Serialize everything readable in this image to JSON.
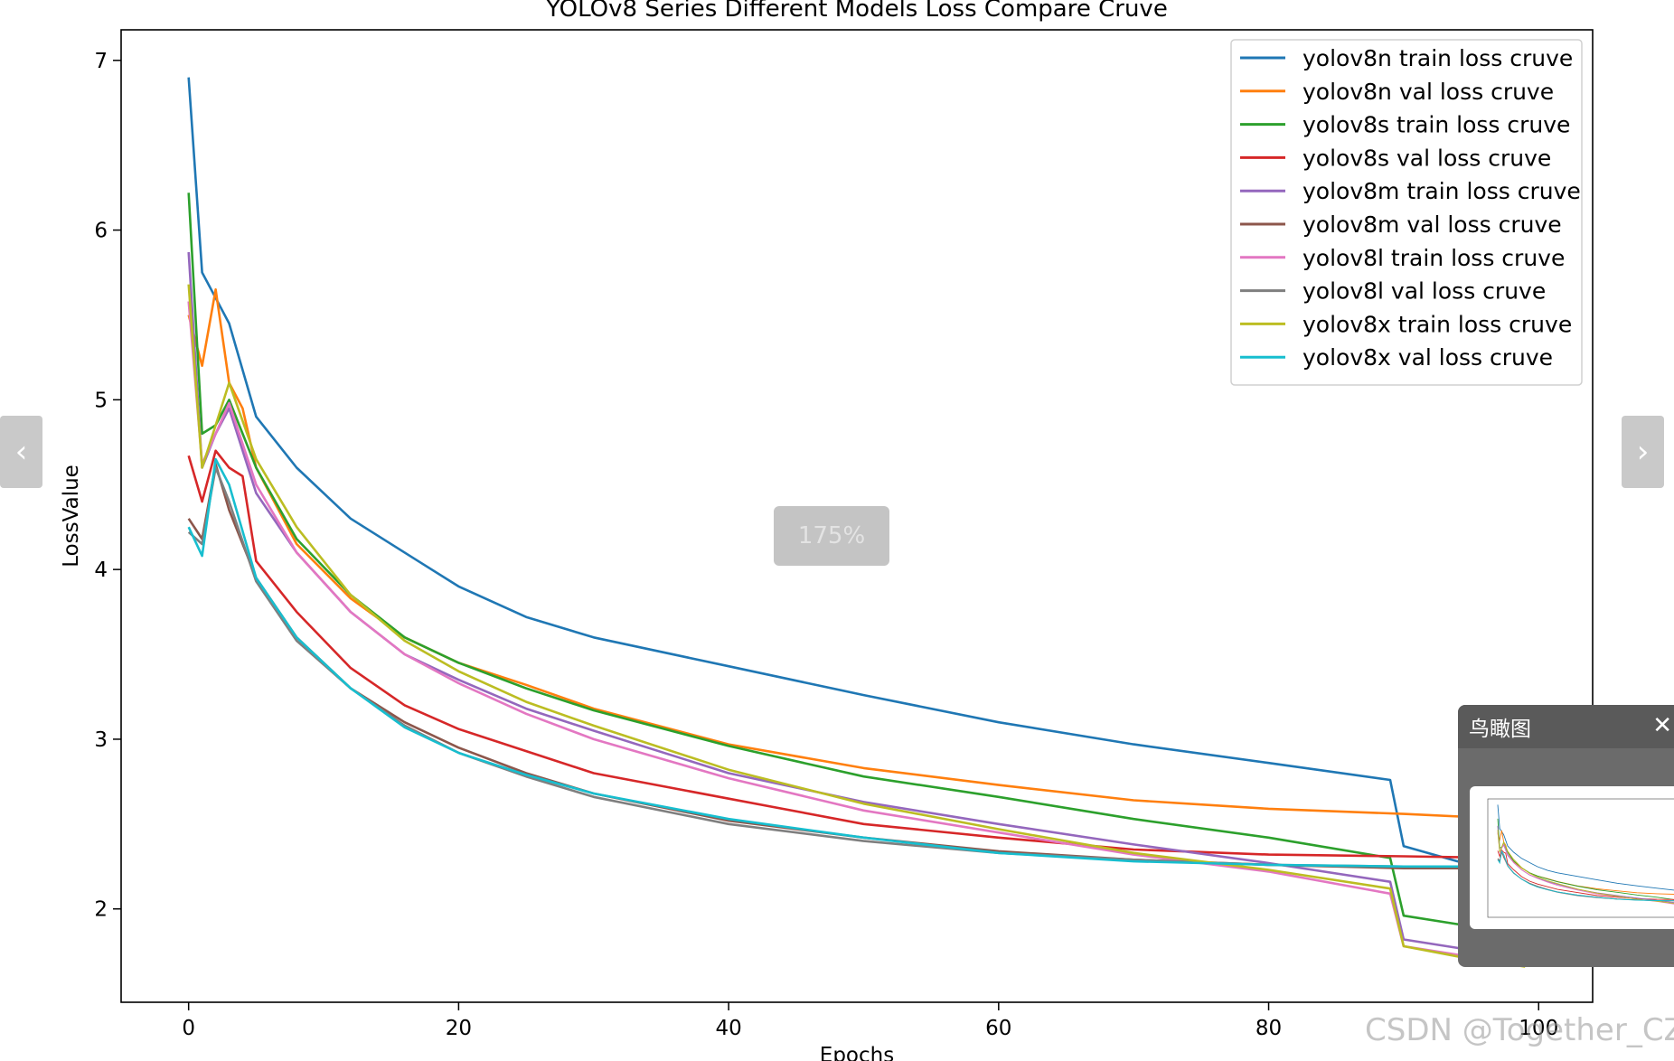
{
  "chart_data": {
    "type": "line",
    "title": "YOLOv8 Series Different Models Loss Compare Cruve",
    "xlabel": "Epochs",
    "ylabel": "LossValue",
    "xlim": [
      -5,
      104
    ],
    "ylim": [
      1.45,
      7.18
    ],
    "xticks": [
      0,
      20,
      40,
      60,
      80,
      100
    ],
    "yticks": [
      2,
      3,
      4,
      5,
      6,
      7
    ],
    "grid": false,
    "legend_position": "upper-right",
    "series": [
      {
        "name": "yolov8n train loss cruve",
        "color": "#1f77b4",
        "points": [
          [
            0,
            6.9
          ],
          [
            1,
            5.75
          ],
          [
            2,
            5.6
          ],
          [
            3,
            5.45
          ],
          [
            5,
            4.9
          ],
          [
            8,
            4.6
          ],
          [
            12,
            4.3
          ],
          [
            17,
            4.05
          ],
          [
            20,
            3.9
          ],
          [
            25,
            3.72
          ],
          [
            30,
            3.6
          ],
          [
            40,
            3.43
          ],
          [
            50,
            3.26
          ],
          [
            60,
            3.1
          ],
          [
            70,
            2.97
          ],
          [
            80,
            2.86
          ],
          [
            89,
            2.76
          ],
          [
            90,
            2.37
          ],
          [
            94,
            2.28
          ],
          [
            98,
            2.26
          ]
        ]
      },
      {
        "name": "yolov8n val loss cruve",
        "color": "#ff7f0e",
        "points": [
          [
            0,
            5.5
          ],
          [
            1,
            5.2
          ],
          [
            2,
            5.65
          ],
          [
            3,
            5.1
          ],
          [
            4,
            4.95
          ],
          [
            5,
            4.6
          ],
          [
            8,
            4.15
          ],
          [
            12,
            3.83
          ],
          [
            16,
            3.6
          ],
          [
            20,
            3.45
          ],
          [
            25,
            3.32
          ],
          [
            30,
            3.18
          ],
          [
            40,
            2.97
          ],
          [
            50,
            2.83
          ],
          [
            60,
            2.73
          ],
          [
            70,
            2.64
          ],
          [
            80,
            2.59
          ],
          [
            90,
            2.56
          ],
          [
            98,
            2.53
          ]
        ]
      },
      {
        "name": "yolov8s train loss cruve",
        "color": "#2ca02c",
        "points": [
          [
            0,
            6.22
          ],
          [
            1,
            4.8
          ],
          [
            2,
            4.85
          ],
          [
            3,
            5.0
          ],
          [
            5,
            4.6
          ],
          [
            8,
            4.18
          ],
          [
            12,
            3.85
          ],
          [
            16,
            3.6
          ],
          [
            20,
            3.45
          ],
          [
            25,
            3.3
          ],
          [
            30,
            3.17
          ],
          [
            40,
            2.96
          ],
          [
            50,
            2.78
          ],
          [
            60,
            2.66
          ],
          [
            70,
            2.53
          ],
          [
            80,
            2.42
          ],
          [
            89,
            2.3
          ],
          [
            90,
            1.96
          ],
          [
            94,
            1.91
          ],
          [
            98,
            1.88
          ]
        ]
      },
      {
        "name": "yolov8s val loss cruve",
        "color": "#d62728",
        "points": [
          [
            0,
            4.67
          ],
          [
            1,
            4.4
          ],
          [
            2,
            4.7
          ],
          [
            3,
            4.6
          ],
          [
            4,
            4.55
          ],
          [
            5,
            4.05
          ],
          [
            8,
            3.75
          ],
          [
            12,
            3.42
          ],
          [
            16,
            3.2
          ],
          [
            20,
            3.06
          ],
          [
            25,
            2.93
          ],
          [
            30,
            2.8
          ],
          [
            40,
            2.65
          ],
          [
            50,
            2.5
          ],
          [
            60,
            2.42
          ],
          [
            70,
            2.35
          ],
          [
            80,
            2.32
          ],
          [
            90,
            2.31
          ],
          [
            98,
            2.3
          ]
        ]
      },
      {
        "name": "yolov8m train loss cruve",
        "color": "#9467bd",
        "points": [
          [
            0,
            5.87
          ],
          [
            1,
            4.6
          ],
          [
            2,
            4.8
          ],
          [
            3,
            4.95
          ],
          [
            5,
            4.45
          ],
          [
            8,
            4.1
          ],
          [
            12,
            3.75
          ],
          [
            16,
            3.5
          ],
          [
            20,
            3.35
          ],
          [
            25,
            3.18
          ],
          [
            30,
            3.05
          ],
          [
            40,
            2.8
          ],
          [
            50,
            2.63
          ],
          [
            60,
            2.5
          ],
          [
            70,
            2.38
          ],
          [
            80,
            2.27
          ],
          [
            89,
            2.16
          ],
          [
            90,
            1.82
          ],
          [
            94,
            1.77
          ],
          [
            99,
            1.72
          ]
        ]
      },
      {
        "name": "yolov8m val loss cruve",
        "color": "#8c564b",
        "points": [
          [
            0,
            4.3
          ],
          [
            1,
            4.18
          ],
          [
            2,
            4.62
          ],
          [
            3,
            4.35
          ],
          [
            5,
            3.95
          ],
          [
            8,
            3.6
          ],
          [
            12,
            3.3
          ],
          [
            16,
            3.1
          ],
          [
            20,
            2.95
          ],
          [
            25,
            2.8
          ],
          [
            30,
            2.68
          ],
          [
            40,
            2.52
          ],
          [
            50,
            2.42
          ],
          [
            60,
            2.34
          ],
          [
            70,
            2.29
          ],
          [
            80,
            2.26
          ],
          [
            90,
            2.24
          ],
          [
            98,
            2.24
          ]
        ]
      },
      {
        "name": "yolov8l train loss cruve",
        "color": "#e377c2",
        "points": [
          [
            0,
            5.58
          ],
          [
            1,
            4.62
          ],
          [
            2,
            4.8
          ],
          [
            3,
            4.98
          ],
          [
            5,
            4.5
          ],
          [
            8,
            4.1
          ],
          [
            12,
            3.75
          ],
          [
            16,
            3.5
          ],
          [
            20,
            3.33
          ],
          [
            25,
            3.15
          ],
          [
            30,
            3.0
          ],
          [
            40,
            2.77
          ],
          [
            50,
            2.58
          ],
          [
            60,
            2.45
          ],
          [
            70,
            2.32
          ],
          [
            80,
            2.22
          ],
          [
            89,
            2.09
          ],
          [
            90,
            1.78
          ],
          [
            94,
            1.73
          ],
          [
            99,
            1.67
          ]
        ]
      },
      {
        "name": "yolov8l val loss cruve",
        "color": "#7f7f7f",
        "points": [
          [
            0,
            4.22
          ],
          [
            1,
            4.15
          ],
          [
            2,
            4.6
          ],
          [
            3,
            4.4
          ],
          [
            5,
            3.93
          ],
          [
            8,
            3.58
          ],
          [
            12,
            3.3
          ],
          [
            16,
            3.08
          ],
          [
            20,
            2.92
          ],
          [
            25,
            2.78
          ],
          [
            30,
            2.66
          ],
          [
            40,
            2.5
          ],
          [
            50,
            2.4
          ],
          [
            60,
            2.33
          ],
          [
            70,
            2.29
          ],
          [
            80,
            2.26
          ],
          [
            90,
            2.25
          ],
          [
            98,
            2.25
          ]
        ]
      },
      {
        "name": "yolov8x train loss cruve",
        "color": "#bcbd22",
        "points": [
          [
            0,
            5.68
          ],
          [
            1,
            4.6
          ],
          [
            2,
            4.85
          ],
          [
            3,
            5.1
          ],
          [
            5,
            4.65
          ],
          [
            8,
            4.25
          ],
          [
            12,
            3.85
          ],
          [
            16,
            3.58
          ],
          [
            20,
            3.4
          ],
          [
            25,
            3.22
          ],
          [
            30,
            3.08
          ],
          [
            40,
            2.82
          ],
          [
            50,
            2.62
          ],
          [
            60,
            2.47
          ],
          [
            70,
            2.33
          ],
          [
            80,
            2.23
          ],
          [
            89,
            2.12
          ],
          [
            90,
            1.78
          ],
          [
            94,
            1.72
          ],
          [
            99,
            1.66
          ]
        ]
      },
      {
        "name": "yolov8x val loss cruve",
        "color": "#17becf",
        "points": [
          [
            0,
            4.25
          ],
          [
            1,
            4.08
          ],
          [
            2,
            4.65
          ],
          [
            3,
            4.5
          ],
          [
            5,
            3.95
          ],
          [
            8,
            3.6
          ],
          [
            12,
            3.3
          ],
          [
            16,
            3.07
          ],
          [
            20,
            2.92
          ],
          [
            25,
            2.79
          ],
          [
            30,
            2.68
          ],
          [
            40,
            2.53
          ],
          [
            50,
            2.42
          ],
          [
            60,
            2.33
          ],
          [
            70,
            2.28
          ],
          [
            80,
            2.26
          ],
          [
            90,
            2.25
          ],
          [
            98,
            2.25
          ]
        ]
      }
    ]
  },
  "ui": {
    "prev_glyph": "‹",
    "next_glyph": "›",
    "zoom_level": "175%",
    "overview_title": "鸟瞰图",
    "overview_close": "✕",
    "watermark": "CSDN @Together_CZ"
  }
}
